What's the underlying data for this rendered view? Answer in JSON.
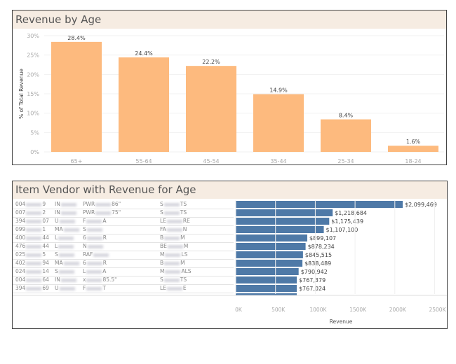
{
  "chart_data": [
    {
      "type": "bar",
      "title": "Revenue by Age",
      "ylabel": "% of Total Revenue",
      "xlabel": "",
      "categories": [
        "65+",
        "55-64",
        "45-54",
        "35-44",
        "25-34",
        "18-24"
      ],
      "values": [
        28.4,
        24.4,
        22.2,
        14.9,
        8.4,
        1.6
      ],
      "data_labels": [
        "28.4%",
        "24.4%",
        "22.2%",
        "14.9%",
        "8.4%",
        "1.6%"
      ],
      "ylim": [
        0,
        30
      ],
      "yticks": [
        "0%",
        "5%",
        "10%",
        "15%",
        "20%",
        "25%",
        "30%"
      ],
      "grid": true,
      "color": "#fdba7e"
    },
    {
      "type": "bar",
      "orientation": "horizontal",
      "title": "Item Vendor with Revenue for Age",
      "xlabel": "Revenue",
      "xlim": [
        0,
        2500000
      ],
      "xticks": [
        "0K",
        "500K",
        "1000K",
        "1500K",
        "2000K",
        "2500K"
      ],
      "color": "#4e79a7",
      "rows": [
        {
          "c1": [
            "004",
            "9"
          ],
          "c2": [
            "IN",
            ""
          ],
          "c3": [
            "PWR",
            "86\""
          ],
          "c4": [
            "S",
            "TS"
          ],
          "value": 2099469,
          "label": "$2,099,469"
        },
        {
          "c1": [
            "007",
            "2"
          ],
          "c2": [
            "IN",
            ""
          ],
          "c3": [
            "PWR",
            "75\""
          ],
          "c4": [
            "S",
            "TS"
          ],
          "value": 1218684,
          "label": "$1,218,684"
        },
        {
          "c1": [
            "394",
            "07"
          ],
          "c2": [
            "U",
            ""
          ],
          "c3": [
            "F",
            "A"
          ],
          "c4": [
            "LE",
            "RE"
          ],
          "value": 1175439,
          "label": "$1,175,439"
        },
        {
          "c1": [
            "099",
            "1"
          ],
          "c2": [
            "MA",
            ""
          ],
          "c3": [
            "S",
            ""
          ],
          "c4": [
            "FA",
            "N"
          ],
          "value": 1107100,
          "label": "$1,107,100"
        },
        {
          "c1": [
            "400",
            "44"
          ],
          "c2": [
            "L",
            ""
          ],
          "c3": [
            "6",
            "R"
          ],
          "c4": [
            "B",
            "M"
          ],
          "value": 899107,
          "label": "$899,107"
        },
        {
          "c1": [
            "476",
            "44"
          ],
          "c2": [
            "L",
            ""
          ],
          "c3": [
            "N",
            ""
          ],
          "c4": [
            "BE",
            "M"
          ],
          "value": 878234,
          "label": "$878,234"
        },
        {
          "c1": [
            "025",
            "5"
          ],
          "c2": [
            "S",
            ""
          ],
          "c3": [
            "RAF",
            ""
          ],
          "c4": [
            "M",
            "LS"
          ],
          "value": 845515,
          "label": "$845,515"
        },
        {
          "c1": [
            "402",
            "94"
          ],
          "c2": [
            "MA",
            ""
          ],
          "c3": [
            "6",
            "R"
          ],
          "c4": [
            "B",
            "M"
          ],
          "value": 838489,
          "label": "$838,489"
        },
        {
          "c1": [
            "024",
            "14"
          ],
          "c2": [
            "S",
            ""
          ],
          "c3": [
            "L",
            "A"
          ],
          "c4": [
            "M",
            "ALS"
          ],
          "value": 790942,
          "label": "$790,942"
        },
        {
          "c1": [
            "004",
            "64"
          ],
          "c2": [
            "IN",
            ""
          ],
          "c3": [
            "x",
            "85.5\""
          ],
          "c4": [
            "S",
            "TS"
          ],
          "value": 767379,
          "label": "$767,379"
        },
        {
          "c1": [
            "394",
            "69"
          ],
          "c2": [
            "U",
            ""
          ],
          "c3": [
            "F",
            "T"
          ],
          "c4": [
            "LE",
            "E"
          ],
          "value": 767024,
          "label": "$767,024"
        }
      ]
    }
  ]
}
